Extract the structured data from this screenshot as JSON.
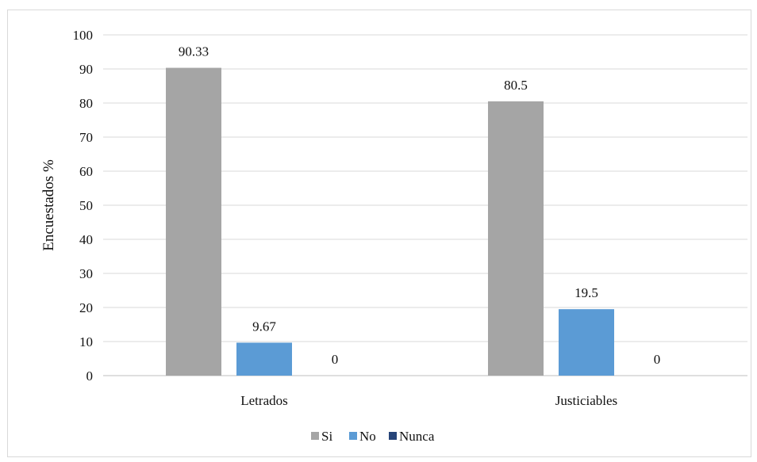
{
  "chart_data": {
    "type": "bar",
    "categories": [
      "Letrados",
      "Justiciables"
    ],
    "series": [
      {
        "name": "Si",
        "values": [
          90.33,
          80.5
        ],
        "color": "#a5a5a5"
      },
      {
        "name": "No",
        "values": [
          9.67,
          19.5
        ],
        "color": "#5b9bd5"
      },
      {
        "name": "Nunca",
        "values": [
          0,
          0
        ],
        "color": "#264478"
      }
    ],
    "data_labels": [
      [
        "90.33",
        "80.5"
      ],
      [
        "9.67",
        "19.5"
      ],
      [
        "0",
        "0"
      ]
    ],
    "ylabel": "Encuestados %",
    "xlabel": "",
    "ylim": [
      0,
      100
    ],
    "yticks": [
      0,
      10,
      20,
      30,
      40,
      50,
      60,
      70,
      80,
      90,
      100
    ],
    "grid": true,
    "legend_position": "bottom"
  }
}
